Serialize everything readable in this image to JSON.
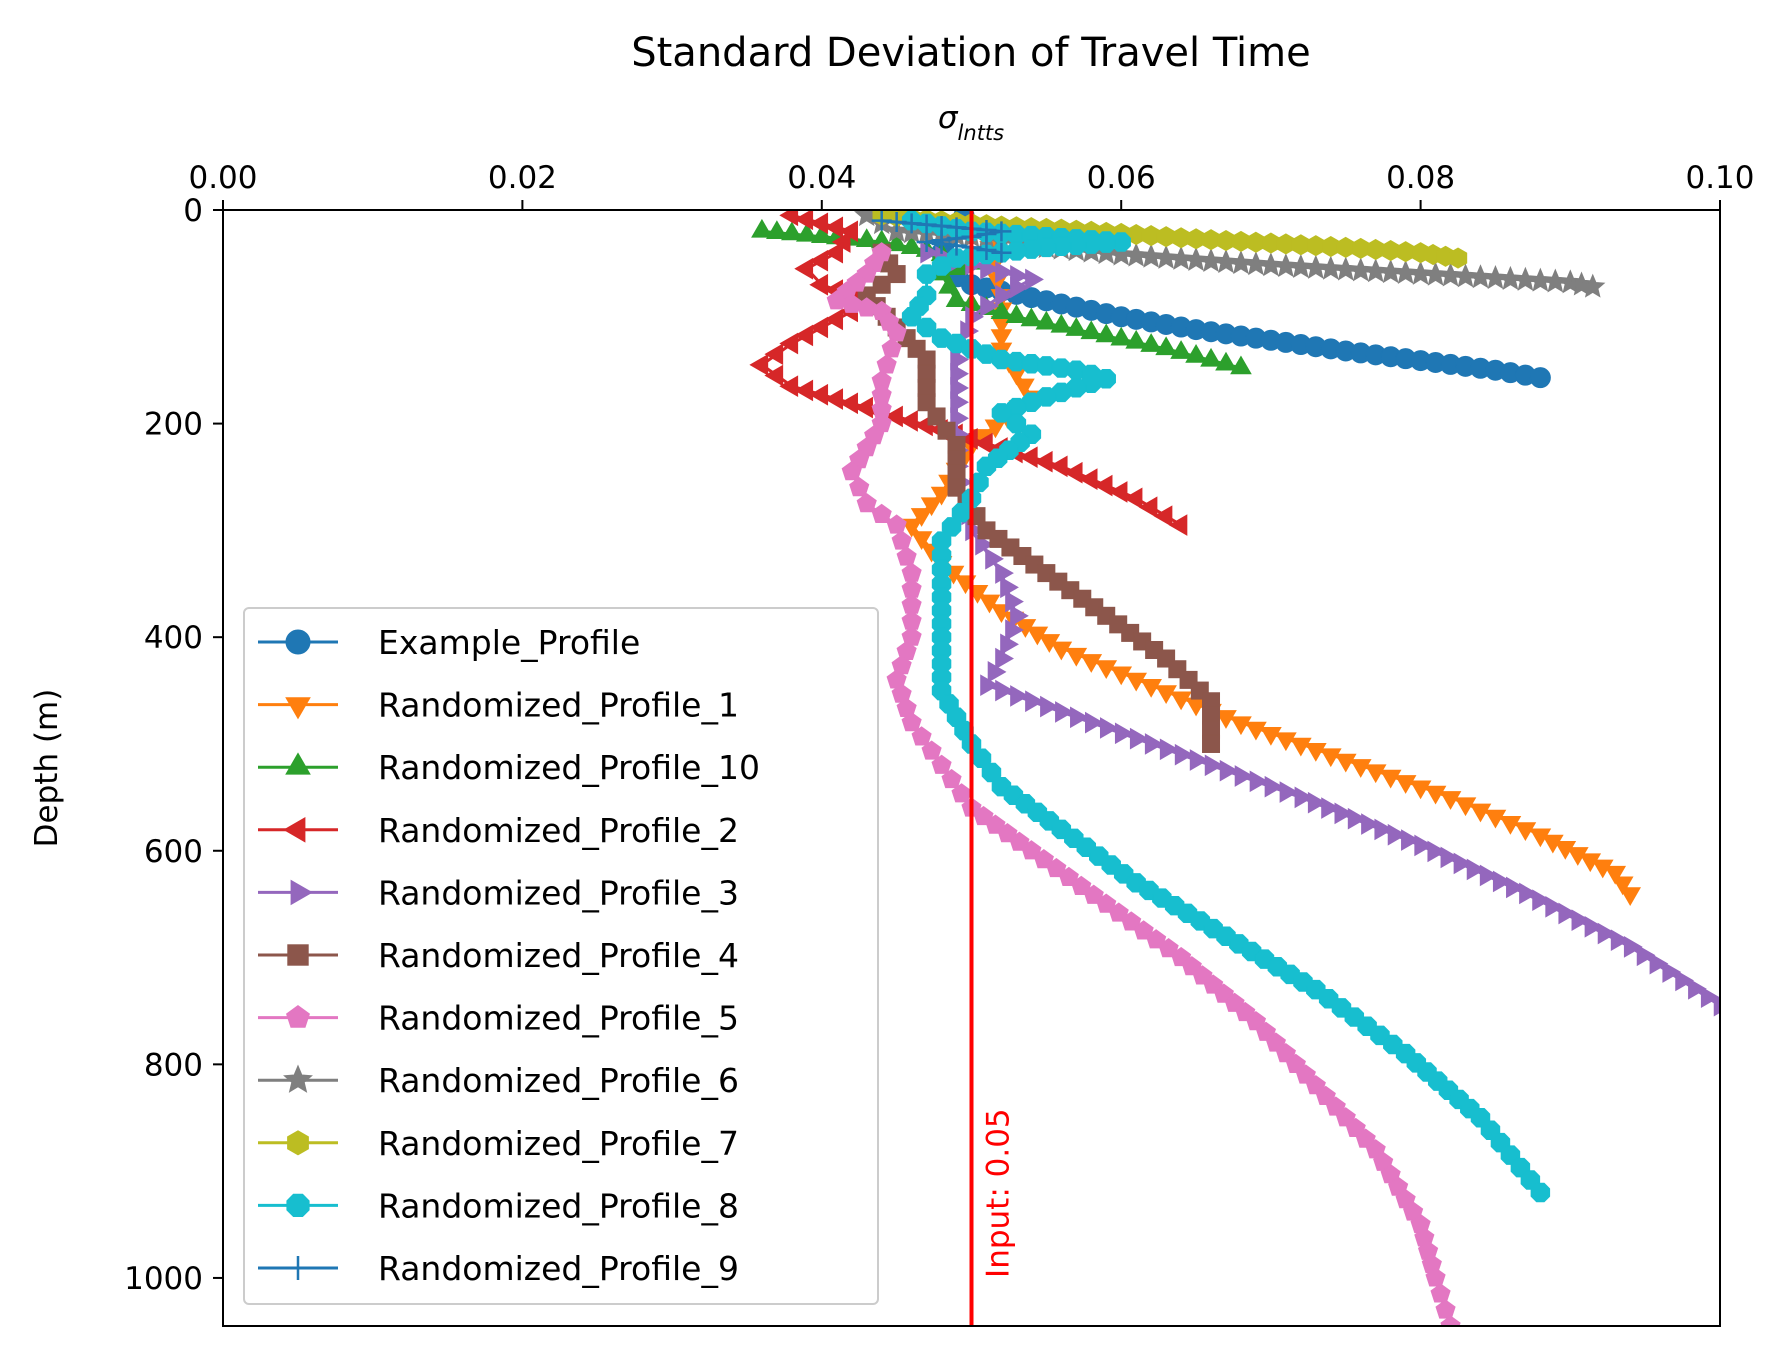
{
  "chart_data": {
    "type": "line",
    "title": "Standard Deviation of Travel Time",
    "xlabel_html": "σ<tspan baseline-shift='sub' font-size='22px' font-style='italic'>lntts</tspan>",
    "xlabel": "σlntts",
    "ylabel": "Depth (m)",
    "xaxis_position": "top",
    "y_inverted": true,
    "xlim": [
      0.0,
      0.1
    ],
    "ylim": [
      1045,
      0
    ],
    "x_ticks": [
      "0.00",
      "0.02",
      "0.04",
      "0.06",
      "0.08",
      "0.10"
    ],
    "x_tick_values": [
      0.0,
      0.02,
      0.04,
      0.06,
      0.08,
      0.1
    ],
    "y_ticks": [
      "0",
      "200",
      "400",
      "600",
      "800",
      "1000"
    ],
    "y_tick_values": [
      0,
      200,
      400,
      600,
      800,
      1000
    ],
    "grid": false,
    "legend_position": "lower-left",
    "reference_line": {
      "x": 0.05,
      "color": "#ff0000",
      "label": "Input: 0.05"
    },
    "series": [
      {
        "name": "Example_Profile",
        "color": "#1f77b4",
        "marker": "circle",
        "points": [
          [
            0.0495,
            5
          ],
          [
            0.0485,
            20
          ],
          [
            0.048,
            40
          ],
          [
            0.0482,
            55
          ],
          [
            0.05,
            70
          ],
          [
            0.055,
            85
          ],
          [
            0.06,
            100
          ],
          [
            0.065,
            112
          ],
          [
            0.07,
            122
          ],
          [
            0.075,
            132
          ],
          [
            0.08,
            141
          ],
          [
            0.085,
            150
          ],
          [
            0.088,
            157
          ]
        ]
      },
      {
        "name": "Randomized_Profile_1",
        "color": "#ff7f0e",
        "marker": "triangle-down",
        "points": [
          [
            0.051,
            20
          ],
          [
            0.052,
            80
          ],
          [
            0.052,
            130
          ],
          [
            0.054,
            175
          ],
          [
            0.05,
            220
          ],
          [
            0.048,
            265
          ],
          [
            0.046,
            295
          ],
          [
            0.048,
            330
          ],
          [
            0.052,
            375
          ],
          [
            0.056,
            410
          ],
          [
            0.062,
            445
          ],
          [
            0.068,
            480
          ],
          [
            0.075,
            515
          ],
          [
            0.082,
            550
          ],
          [
            0.088,
            585
          ],
          [
            0.093,
            620
          ],
          [
            0.094,
            640
          ]
        ]
      },
      {
        "name": "Randomized_Profile_10",
        "color": "#2ca02c",
        "marker": "triangle-up",
        "points": [
          [
            0.036,
            20
          ],
          [
            0.04,
            25
          ],
          [
            0.044,
            30
          ],
          [
            0.047,
            38
          ],
          [
            0.05,
            50
          ],
          [
            0.048,
            60
          ],
          [
            0.049,
            85
          ],
          [
            0.053,
            100
          ],
          [
            0.058,
            115
          ],
          [
            0.063,
            130
          ],
          [
            0.068,
            148
          ]
        ]
      },
      {
        "name": "Randomized_Profile_2",
        "color": "#d62728",
        "marker": "triangle-left",
        "points": [
          [
            0.038,
            5
          ],
          [
            0.042,
            20
          ],
          [
            0.041,
            40
          ],
          [
            0.039,
            55
          ],
          [
            0.04,
            70
          ],
          [
            0.042,
            80
          ],
          [
            0.042,
            95
          ],
          [
            0.04,
            110
          ],
          [
            0.038,
            125
          ],
          [
            0.036,
            145
          ],
          [
            0.038,
            165
          ],
          [
            0.043,
            185
          ],
          [
            0.049,
            210
          ],
          [
            0.056,
            240
          ],
          [
            0.061,
            270
          ],
          [
            0.064,
            295
          ]
        ]
      },
      {
        "name": "Randomized_Profile_3",
        "color": "#9467bd",
        "marker": "triangle-right",
        "points": [
          [
            0.047,
            40
          ],
          [
            0.051,
            55
          ],
          [
            0.054,
            65
          ],
          [
            0.052,
            80
          ],
          [
            0.05,
            100
          ],
          [
            0.049,
            140
          ],
          [
            0.049,
            180
          ],
          [
            0.049,
            240
          ],
          [
            0.05,
            300
          ],
          [
            0.052,
            340
          ],
          [
            0.053,
            380
          ],
          [
            0.052,
            420
          ],
          [
            0.051,
            445
          ],
          [
            0.056,
            470
          ],
          [
            0.064,
            510
          ],
          [
            0.072,
            550
          ],
          [
            0.08,
            595
          ],
          [
            0.087,
            640
          ],
          [
            0.094,
            690
          ],
          [
            0.1,
            745
          ]
        ]
      },
      {
        "name": "Randomized_Profile_4",
        "color": "#8c564b",
        "marker": "square",
        "points": [
          [
            0.044,
            40
          ],
          [
            0.045,
            60
          ],
          [
            0.043,
            80
          ],
          [
            0.045,
            110
          ],
          [
            0.047,
            140
          ],
          [
            0.047,
            180
          ],
          [
            0.049,
            220
          ],
          [
            0.049,
            260
          ],
          [
            0.051,
            300
          ],
          [
            0.055,
            340
          ],
          [
            0.059,
            380
          ],
          [
            0.063,
            420
          ],
          [
            0.066,
            460
          ],
          [
            0.066,
            500
          ]
        ]
      },
      {
        "name": "Randomized_Profile_5",
        "color": "#e377c2",
        "marker": "pentagon",
        "points": [
          [
            0.044,
            40
          ],
          [
            0.043,
            60
          ],
          [
            0.041,
            85
          ],
          [
            0.044,
            95
          ],
          [
            0.045,
            115
          ],
          [
            0.044,
            160
          ],
          [
            0.044,
            200
          ],
          [
            0.042,
            245
          ],
          [
            0.043,
            275
          ],
          [
            0.045,
            295
          ],
          [
            0.046,
            340
          ],
          [
            0.046,
            400
          ],
          [
            0.045,
            440
          ],
          [
            0.046,
            480
          ],
          [
            0.048,
            520
          ],
          [
            0.05,
            560
          ],
          [
            0.054,
            600
          ],
          [
            0.059,
            650
          ],
          [
            0.064,
            700
          ],
          [
            0.069,
            760
          ],
          [
            0.073,
            820
          ],
          [
            0.077,
            880
          ],
          [
            0.08,
            950
          ],
          [
            0.081,
            1000
          ],
          [
            0.082,
            1045
          ]
        ]
      },
      {
        "name": "Randomized_Profile_6",
        "color": "#7f7f7f",
        "marker": "star",
        "points": [
          [
            0.043,
            5
          ],
          [
            0.045,
            20
          ],
          [
            0.05,
            25
          ],
          [
            0.055,
            35
          ],
          [
            0.06,
            42
          ],
          [
            0.065,
            47
          ],
          [
            0.07,
            52
          ],
          [
            0.075,
            56
          ],
          [
            0.08,
            60
          ],
          [
            0.085,
            64
          ],
          [
            0.09,
            68
          ],
          [
            0.0915,
            72
          ]
        ]
      },
      {
        "name": "Randomized_Profile_7",
        "color": "#bcbd22",
        "marker": "hexagon",
        "points": [
          [
            0.044,
            5
          ],
          [
            0.048,
            10
          ],
          [
            0.052,
            15
          ],
          [
            0.056,
            18
          ],
          [
            0.06,
            22
          ],
          [
            0.065,
            27
          ],
          [
            0.07,
            31
          ],
          [
            0.075,
            35
          ],
          [
            0.08,
            40
          ],
          [
            0.0825,
            45
          ]
        ]
      },
      {
        "name": "Randomized_Profile_8",
        "color": "#17becf",
        "marker": "octagon",
        "points": [
          [
            0.046,
            10
          ],
          [
            0.05,
            20
          ],
          [
            0.055,
            25
          ],
          [
            0.06,
            30
          ],
          [
            0.055,
            35
          ],
          [
            0.049,
            45
          ],
          [
            0.047,
            60
          ],
          [
            0.047,
            80
          ],
          [
            0.046,
            100
          ],
          [
            0.048,
            120
          ],
          [
            0.052,
            140
          ],
          [
            0.057,
            150
          ],
          [
            0.059,
            158
          ],
          [
            0.055,
            175
          ],
          [
            0.052,
            190
          ],
          [
            0.054,
            210
          ],
          [
            0.051,
            240
          ],
          [
            0.05,
            270
          ],
          [
            0.048,
            310
          ],
          [
            0.048,
            350
          ],
          [
            0.048,
            400
          ],
          [
            0.048,
            450
          ],
          [
            0.05,
            500
          ],
          [
            0.052,
            540
          ],
          [
            0.056,
            580
          ],
          [
            0.061,
            630
          ],
          [
            0.067,
            680
          ],
          [
            0.073,
            730
          ],
          [
            0.079,
            790
          ],
          [
            0.084,
            850
          ],
          [
            0.088,
            920
          ]
        ]
      },
      {
        "name": "Randomized_Profile_9",
        "color": "#1f77b4",
        "marker": "plus",
        "points": [
          [
            0.044,
            10
          ],
          [
            0.048,
            15
          ],
          [
            0.052,
            20
          ],
          [
            0.05,
            25
          ],
          [
            0.047,
            30
          ],
          [
            0.05,
            35
          ],
          [
            0.052,
            40
          ]
        ]
      }
    ]
  }
}
